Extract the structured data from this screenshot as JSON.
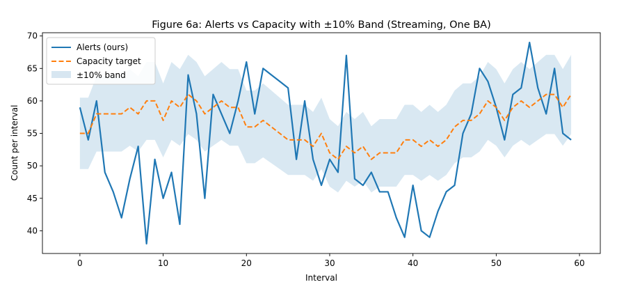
{
  "chart_data": {
    "type": "line",
    "title": "Figure 6a: Alerts vs Capacity with ±10% Band (Streaming, One BA)",
    "xlabel": "Interval",
    "ylabel": "Count per interval",
    "xlim": [
      -4.5,
      62.5
    ],
    "ylim": [
      36.5,
      70.5
    ],
    "xticks": [
      0,
      10,
      20,
      30,
      40,
      50,
      60
    ],
    "yticks": [
      40,
      45,
      50,
      55,
      60,
      65,
      70
    ],
    "grid": false,
    "legend_position": "upper-left",
    "x": [
      0,
      1,
      2,
      3,
      4,
      5,
      6,
      7,
      8,
      9,
      10,
      11,
      12,
      13,
      14,
      15,
      16,
      17,
      18,
      19,
      20,
      21,
      22,
      23,
      24,
      25,
      26,
      27,
      28,
      29,
      30,
      31,
      32,
      33,
      34,
      35,
      36,
      37,
      38,
      39,
      40,
      41,
      42,
      43,
      44,
      45,
      46,
      47,
      48,
      49,
      50,
      51,
      52,
      53,
      54,
      55,
      56,
      57,
      58,
      59
    ],
    "series": [
      {
        "name": "Alerts (ours)",
        "style": "solid",
        "color": "#1f77b4",
        "values": [
          59,
          54,
          60,
          49,
          46,
          42,
          48,
          53,
          38,
          51,
          45,
          49,
          41,
          64,
          58,
          45,
          61,
          58,
          55,
          60,
          66,
          58,
          65,
          64,
          63,
          62,
          51,
          60,
          51,
          47,
          51,
          49,
          67,
          48,
          47,
          49,
          46,
          46,
          42,
          39,
          47,
          40,
          39,
          43,
          46,
          47,
          55,
          58,
          65,
          63,
          59,
          54,
          61,
          62,
          69,
          62,
          58,
          65,
          55,
          54
        ]
      },
      {
        "name": "Capacity target",
        "style": "dashed",
        "color": "#ff7f0e",
        "values": [
          55,
          55,
          58,
          58,
          58,
          58,
          59,
          58,
          60,
          60,
          57,
          60,
          59,
          61,
          60,
          58,
          59,
          60,
          59,
          59,
          56,
          56,
          57,
          56,
          55,
          54,
          54,
          54,
          53,
          55,
          52,
          51,
          53,
          52,
          53,
          51,
          52,
          52,
          52,
          54,
          54,
          53,
          54,
          53,
          54,
          56,
          57,
          57,
          58,
          60,
          59,
          57,
          59,
          60,
          59,
          60,
          61,
          61,
          59,
          61
        ]
      },
      {
        "name": "±10% band",
        "style": "band",
        "color": "#1f77b4",
        "lower": [
          49.5,
          49.5,
          52.2,
          52.2,
          52.2,
          52.2,
          53.1,
          52.2,
          54.0,
          54.0,
          51.3,
          54.0,
          53.1,
          54.9,
          54.0,
          52.2,
          53.1,
          54.0,
          53.1,
          53.1,
          50.4,
          50.4,
          51.3,
          50.4,
          49.5,
          48.6,
          48.6,
          48.6,
          47.7,
          49.5,
          46.8,
          45.9,
          47.7,
          46.8,
          47.7,
          45.9,
          46.8,
          46.8,
          46.8,
          48.6,
          48.6,
          47.7,
          48.6,
          47.7,
          48.6,
          50.4,
          51.3,
          51.3,
          52.2,
          54.0,
          53.1,
          51.3,
          53.1,
          54.0,
          53.1,
          54.0,
          54.9,
          54.9,
          53.1,
          54.9
        ],
        "upper": [
          60.5,
          60.5,
          63.8,
          63.8,
          63.8,
          63.8,
          64.9,
          63.8,
          66.0,
          66.0,
          62.7,
          66.0,
          64.9,
          67.1,
          66.0,
          63.8,
          64.9,
          66.0,
          64.9,
          64.9,
          61.6,
          61.6,
          62.7,
          61.6,
          60.5,
          59.4,
          59.4,
          59.4,
          58.3,
          60.5,
          57.2,
          56.1,
          58.3,
          57.2,
          58.3,
          56.1,
          57.2,
          57.2,
          57.2,
          59.4,
          59.4,
          58.3,
          59.4,
          58.3,
          59.4,
          61.6,
          62.7,
          62.7,
          63.8,
          66.0,
          64.9,
          62.7,
          64.9,
          66.0,
          64.9,
          66.0,
          67.1,
          67.1,
          64.9,
          67.1
        ]
      }
    ]
  }
}
